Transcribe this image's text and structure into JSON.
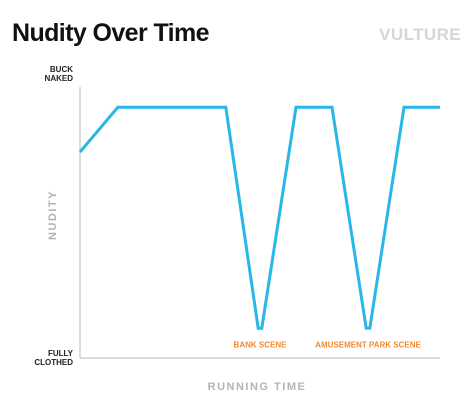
{
  "chart_data": {
    "type": "line",
    "title": "Nudity Over Time",
    "brand": "VULTURE",
    "xlabel": "RUNNING TIME",
    "ylabel": "NUDITY",
    "y_top_label": [
      "BUCK",
      "NAKED"
    ],
    "y_bottom_label": [
      "FULLY",
      "CLOTHED"
    ],
    "xlim": [
      0,
      100
    ],
    "ylim": [
      0,
      100
    ],
    "grid": false,
    "legend": "none",
    "colors": {
      "line": "#29b6e8",
      "annotation": "#f08a32",
      "axis": "#b8b8b8"
    },
    "series": [
      {
        "x": [
          0,
          10.5,
          40.5,
          49.5,
          50.5,
          60,
          70,
          79.5,
          80.5,
          90,
          100
        ],
        "y": [
          76,
          92.5,
          92.5,
          11,
          11,
          92.5,
          92.5,
          11,
          11,
          92.5,
          92.5
        ]
      }
    ],
    "annotations": [
      {
        "text": "BANK SCENE",
        "x": 50,
        "y": 5
      },
      {
        "text": "AMUSEMENT PARK SCENE",
        "x": 80,
        "y": 5
      }
    ]
  }
}
